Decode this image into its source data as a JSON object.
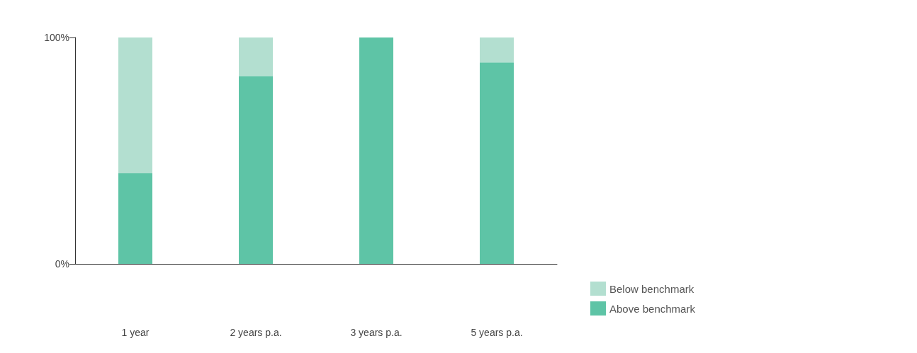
{
  "chart_data": {
    "type": "bar",
    "stacked": true,
    "categories": [
      "1 year",
      "2 years p.a.",
      "3 years p.a.",
      "5 years p.a."
    ],
    "series": [
      {
        "name": "Above benchmark",
        "color": "#5ec4a6",
        "values": [
          40,
          83,
          100,
          89
        ]
      },
      {
        "name": "Below benchmark",
        "color": "#b3dfd0",
        "values": [
          60,
          17,
          0,
          11
        ]
      }
    ],
    "ylim": [
      0,
      100
    ],
    "yticks": [
      {
        "value": 0,
        "label": "0%"
      },
      {
        "value": 100,
        "label": "100%"
      }
    ],
    "grid": false,
    "legend": "bottom right"
  }
}
